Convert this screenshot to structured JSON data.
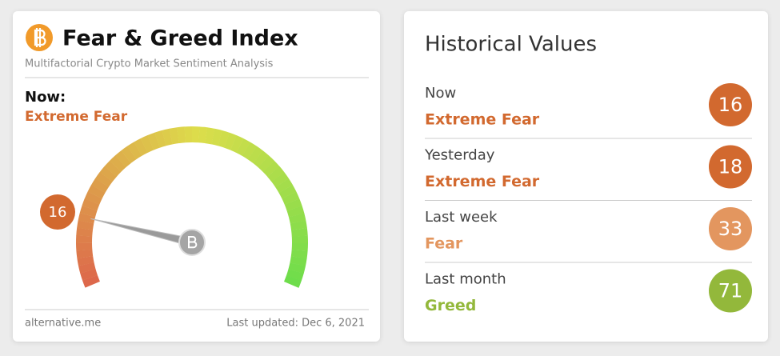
{
  "gauge_card": {
    "title": "Fear & Greed Index",
    "subtitle": "Multifactorial Crypto Market Sentiment Analysis",
    "now_label": "Now:",
    "classification": "Extreme Fear",
    "classification_color": "#d2692f",
    "value": 16,
    "range": [
      0,
      100
    ],
    "source": "alternative.me",
    "updated": "Last updated: Dec 6, 2021"
  },
  "history": {
    "title": "Historical Values",
    "rows": [
      {
        "period": "Now",
        "classification": "Extreme Fear",
        "value": 16,
        "color": "#d2692f"
      },
      {
        "period": "Yesterday",
        "classification": "Extreme Fear",
        "value": 18,
        "color": "#d2692f"
      },
      {
        "period": "Last week",
        "classification": "Fear",
        "value": 33,
        "color": "#e3965f"
      },
      {
        "period": "Last month",
        "classification": "Greed",
        "value": 71,
        "color": "#93b83b"
      }
    ]
  }
}
